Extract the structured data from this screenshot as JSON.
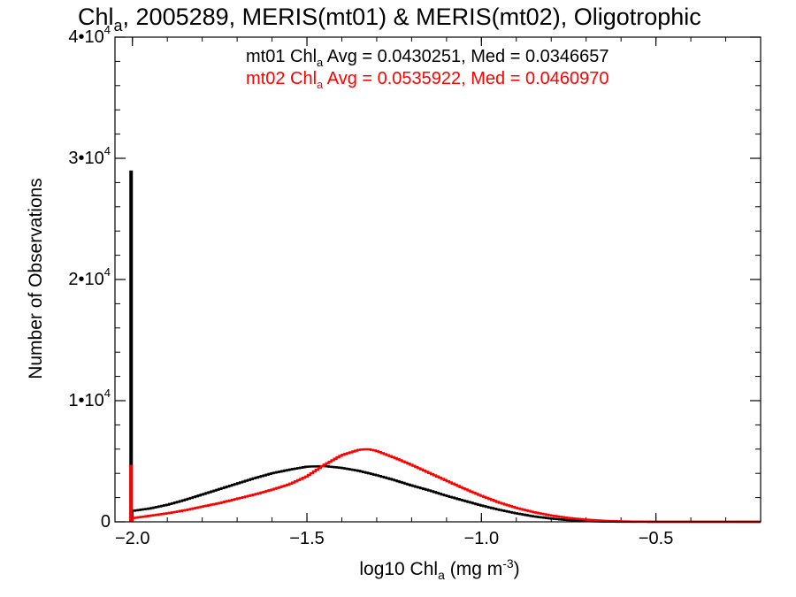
{
  "chart_data": {
    "type": "line",
    "title_parts": {
      "pre": "Chl",
      "sub": "a",
      "post": ", 2005289, MERIS(mt01) & MERIS(mt02), Oligotrophic"
    },
    "xlabel_parts": {
      "pre": "log10 Chl",
      "sub": "a",
      "mid": " (mg m",
      "sup": "-3",
      "post": ")"
    },
    "ylabel": "Number of Observations",
    "xlim": [
      -2.05,
      -0.2
    ],
    "ylim": [
      0,
      40000
    ],
    "x_ticks": [
      {
        "value": -2.0,
        "label": "−2.0"
      },
      {
        "value": -1.5,
        "label": "−1.5"
      },
      {
        "value": -1.0,
        "label": "−1.0"
      },
      {
        "value": -0.5,
        "label": "−0.5"
      }
    ],
    "y_ticks": [
      {
        "value": 0,
        "base": "0",
        "exp": ""
      },
      {
        "value": 10000,
        "base": "1•10",
        "exp": "4"
      },
      {
        "value": 20000,
        "base": "2•10",
        "exp": "4"
      },
      {
        "value": 30000,
        "base": "3•10",
        "exp": "4"
      },
      {
        "value": 40000,
        "base": "4•10",
        "exp": "4"
      }
    ],
    "annotations": [
      {
        "pre": "mt01 Chl",
        "sub": "a",
        "post": " Avg = 0.0430251, Med = 0.0346657",
        "color": "#000000"
      },
      {
        "pre": "mt02 Chl",
        "sub": "a",
        "post": " Avg = 0.0535922, Med = 0.0460970",
        "color": "#ff0000"
      }
    ],
    "series": [
      {
        "color": "#000000",
        "spike": {
          "x": -2.0,
          "y": 29000
        },
        "x": [
          -2.0,
          -1.95,
          -1.9,
          -1.85,
          -1.8,
          -1.75,
          -1.7,
          -1.65,
          -1.6,
          -1.55,
          -1.5,
          -1.45,
          -1.4,
          -1.35,
          -1.3,
          -1.25,
          -1.2,
          -1.15,
          -1.1,
          -1.05,
          -1.0,
          -0.95,
          -0.9,
          -0.85,
          -0.8,
          -0.75,
          -0.7,
          -0.65,
          -0.6,
          -0.5,
          -0.2
        ],
        "values": [
          900,
          1100,
          1400,
          1800,
          2250,
          2700,
          3150,
          3600,
          4000,
          4300,
          4550,
          4600,
          4450,
          4200,
          3850,
          3450,
          3000,
          2600,
          2150,
          1750,
          1350,
          1000,
          700,
          450,
          270,
          140,
          60,
          20,
          5,
          0,
          0
        ]
      },
      {
        "color": "#ff0000",
        "spike": {
          "x": -2.0,
          "y": 4700
        },
        "x": [
          -2.0,
          -1.95,
          -1.9,
          -1.85,
          -1.8,
          -1.75,
          -1.7,
          -1.65,
          -1.6,
          -1.55,
          -1.5,
          -1.45,
          -1.4,
          -1.35,
          -1.325,
          -1.3,
          -1.25,
          -1.2,
          -1.15,
          -1.1,
          -1.05,
          -1.0,
          -0.95,
          -0.9,
          -0.85,
          -0.8,
          -0.75,
          -0.7,
          -0.65,
          -0.6,
          -0.55,
          -0.5,
          -0.2
        ],
        "values": [
          300,
          500,
          700,
          950,
          1250,
          1550,
          1900,
          2250,
          2650,
          3100,
          3750,
          4700,
          5500,
          5950,
          6000,
          5850,
          5300,
          4700,
          4050,
          3400,
          2750,
          2150,
          1600,
          1150,
          800,
          520,
          320,
          180,
          90,
          40,
          15,
          5,
          0
        ]
      }
    ]
  }
}
